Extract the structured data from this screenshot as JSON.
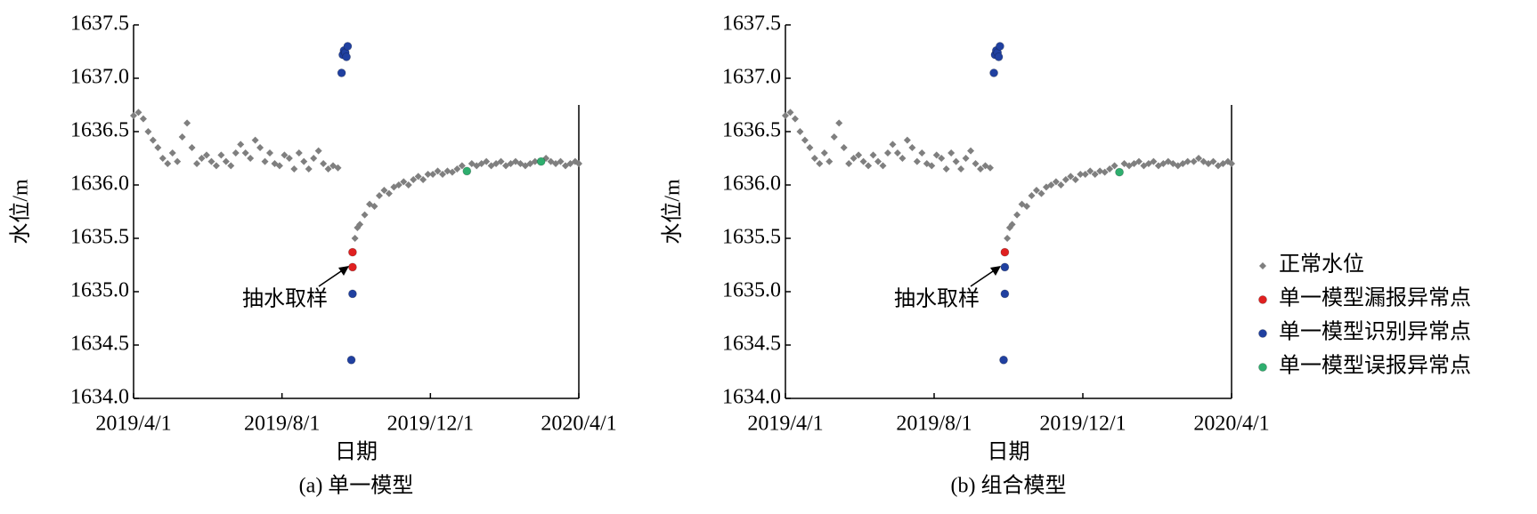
{
  "chart_data": [
    {
      "type": "scatter",
      "caption": "(a) 单一模型",
      "xlabel": "日期",
      "ylabel": "水位/m",
      "annotation": "抽水取样",
      "xlim": [
        "2019/4/1",
        "2020/4/1"
      ],
      "xticks": [
        "2019/4/1",
        "2019/8/1",
        "2019/12/1",
        "2020/4/1"
      ],
      "ylim": [
        1634,
        1637.5
      ],
      "yticks": [
        {
          "value": 1634,
          "label": "1634.0"
        },
        1634.5,
        {
          "value": 1635,
          "label": "1635.0"
        },
        1635.5,
        {
          "value": 1636,
          "label": "1636.0"
        },
        1636.5,
        {
          "value": 1637,
          "label": "1637.0"
        },
        1637.5
      ],
      "series": [
        {
          "color": "#7f7f7f",
          "marker": "diamond",
          "x": [
            "2019/4/1",
            "2019/4/5",
            "2019/4/9",
            "2019/4/13",
            "2019/4/17",
            "2019/4/21",
            "2019/4/25",
            "2019/4/29",
            "2019/5/3",
            "2019/5/7",
            "2019/5/11",
            "2019/5/15",
            "2019/5/19",
            "2019/5/23",
            "2019/5/27",
            "2019/5/31",
            "2019/6/4",
            "2019/6/8",
            "2019/6/12",
            "2019/6/16",
            "2019/6/20",
            "2019/6/24",
            "2019/6/28",
            "2019/7/2",
            "2019/7/6",
            "2019/7/10",
            "2019/7/14",
            "2019/7/18",
            "2019/7/22",
            "2019/7/26",
            "2019/7/30",
            "2019/8/3",
            "2019/8/7",
            "2019/8/11",
            "2019/8/15",
            "2019/8/19",
            "2019/8/23",
            "2019/8/27",
            "2019/8/31",
            "2019/9/4",
            "2019/9/8",
            "2019/9/12",
            "2019/9/16",
            "2019/9/30",
            "2019/10/2",
            "2019/10/4",
            "2019/10/8",
            "2019/10/12",
            "2019/10/16",
            "2019/10/20",
            "2019/10/24",
            "2019/10/28",
            "2019/11/1",
            "2019/11/5",
            "2019/11/9",
            "2019/11/13",
            "2019/11/17",
            "2019/11/21",
            "2019/11/25",
            "2019/11/29",
            "2019/12/3",
            "2019/12/7",
            "2019/12/11",
            "2019/12/15",
            "2019/12/19",
            "2019/12/23",
            "2019/12/27",
            "2020/1/4",
            "2020/1/8",
            "2020/1/12",
            "2020/1/16",
            "2020/1/20",
            "2020/1/24",
            "2020/1/28",
            "2020/2/1",
            "2020/2/5",
            "2020/2/9",
            "2020/2/13",
            "2020/2/17",
            "2020/2/21",
            "2020/2/25",
            "2020/3/5",
            "2020/3/9",
            "2020/3/13",
            "2020/3/17",
            "2020/3/21",
            "2020/3/25",
            "2020/3/29",
            "2020/4/1"
          ],
          "values": [
            1636.65,
            1636.68,
            1636.62,
            1636.5,
            1636.42,
            1636.35,
            1636.25,
            1636.2,
            1636.3,
            1636.22,
            1636.45,
            1636.58,
            1636.35,
            1636.2,
            1636.25,
            1636.28,
            1636.22,
            1636.18,
            1636.28,
            1636.22,
            1636.18,
            1636.3,
            1636.38,
            1636.3,
            1636.25,
            1636.42,
            1636.35,
            1636.22,
            1636.3,
            1636.2,
            1636.18,
            1636.28,
            1636.25,
            1636.15,
            1636.3,
            1636.22,
            1636.15,
            1636.25,
            1636.32,
            1636.2,
            1636.15,
            1636.18,
            1636.16,
            1635.5,
            1635.6,
            1635.63,
            1635.72,
            1635.82,
            1635.8,
            1635.9,
            1635.95,
            1635.92,
            1635.98,
            1636.0,
            1636.03,
            1636.0,
            1636.05,
            1636.08,
            1636.05,
            1636.1,
            1636.1,
            1636.13,
            1636.1,
            1636.13,
            1636.12,
            1636.15,
            1636.18,
            1636.2,
            1636.18,
            1636.2,
            1636.22,
            1636.18,
            1636.2,
            1636.22,
            1636.18,
            1636.2,
            1636.22,
            1636.2,
            1636.18,
            1636.2,
            1636.22,
            1636.25,
            1636.22,
            1636.2,
            1636.22,
            1636.18,
            1636.2,
            1636.22,
            1636.2
          ]
        },
        {
          "color": "#e02020",
          "marker": "circle",
          "x": [
            "2019/9/28",
            "2019/9/28"
          ],
          "values": [
            1635.37,
            1635.23
          ]
        },
        {
          "color": "#2040a0",
          "marker": "circle",
          "x": [
            "2019/9/19",
            "2019/9/20",
            "2019/9/21",
            "2019/9/22",
            "2019/9/23",
            "2019/9/24",
            "2019/9/28",
            "2019/9/27"
          ],
          "values": [
            1637.05,
            1637.22,
            1637.26,
            1637.24,
            1637.2,
            1637.3,
            1634.98,
            1634.36
          ]
        },
        {
          "color": "#2eae6e",
          "marker": "circle",
          "x": [
            "2019/12/31",
            "2020/3/1"
          ],
          "values": [
            1636.13,
            1636.22
          ]
        }
      ]
    },
    {
      "type": "scatter",
      "caption": "(b) 组合模型",
      "xlabel": "日期",
      "ylabel": "水位/m",
      "annotation": "抽水取样",
      "xlim": [
        "2019/4/1",
        "2020/4/1"
      ],
      "xticks": [
        "2019/4/1",
        "2019/8/1",
        "2019/12/1",
        "2020/4/1"
      ],
      "ylim": [
        1634,
        1637.5
      ],
      "yticks": [
        {
          "value": 1634,
          "label": "1634.0"
        },
        1634.5,
        {
          "value": 1635,
          "label": "1635.0"
        },
        1635.5,
        {
          "value": 1636,
          "label": "1636.0"
        },
        1636.5,
        {
          "value": 1637,
          "label": "1637.0"
        },
        1637.5
      ],
      "series": [
        {
          "color": "#7f7f7f",
          "marker": "diamond",
          "x": [
            "2019/4/1",
            "2019/4/5",
            "2019/4/9",
            "2019/4/13",
            "2019/4/17",
            "2019/4/21",
            "2019/4/25",
            "2019/4/29",
            "2019/5/3",
            "2019/5/7",
            "2019/5/11",
            "2019/5/15",
            "2019/5/19",
            "2019/5/23",
            "2019/5/27",
            "2019/5/31",
            "2019/6/4",
            "2019/6/8",
            "2019/6/12",
            "2019/6/16",
            "2019/6/20",
            "2019/6/24",
            "2019/6/28",
            "2019/7/2",
            "2019/7/6",
            "2019/7/10",
            "2019/7/14",
            "2019/7/18",
            "2019/7/22",
            "2019/7/26",
            "2019/7/30",
            "2019/8/3",
            "2019/8/7",
            "2019/8/11",
            "2019/8/15",
            "2019/8/19",
            "2019/8/23",
            "2019/8/27",
            "2019/8/31",
            "2019/9/4",
            "2019/9/8",
            "2019/9/12",
            "2019/9/16",
            "2019/9/30",
            "2019/10/2",
            "2019/10/4",
            "2019/10/8",
            "2019/10/12",
            "2019/10/16",
            "2019/10/20",
            "2019/10/24",
            "2019/10/28",
            "2019/11/1",
            "2019/11/5",
            "2019/11/9",
            "2019/11/13",
            "2019/11/17",
            "2019/11/21",
            "2019/11/25",
            "2019/11/29",
            "2019/12/3",
            "2019/12/7",
            "2019/12/11",
            "2019/12/15",
            "2019/12/19",
            "2019/12/23",
            "2019/12/27",
            "2020/1/4",
            "2020/1/8",
            "2020/1/12",
            "2020/1/16",
            "2020/1/20",
            "2020/1/24",
            "2020/1/28",
            "2020/2/1",
            "2020/2/5",
            "2020/2/9",
            "2020/2/13",
            "2020/2/17",
            "2020/2/21",
            "2020/2/25",
            "2020/3/1",
            "2020/3/5",
            "2020/3/9",
            "2020/3/13",
            "2020/3/17",
            "2020/3/21",
            "2020/3/25",
            "2020/3/29",
            "2020/4/1"
          ],
          "values": [
            1636.65,
            1636.68,
            1636.62,
            1636.5,
            1636.42,
            1636.35,
            1636.25,
            1636.2,
            1636.3,
            1636.22,
            1636.45,
            1636.58,
            1636.35,
            1636.2,
            1636.25,
            1636.28,
            1636.22,
            1636.18,
            1636.28,
            1636.22,
            1636.18,
            1636.3,
            1636.38,
            1636.3,
            1636.25,
            1636.42,
            1636.35,
            1636.22,
            1636.3,
            1636.2,
            1636.18,
            1636.28,
            1636.25,
            1636.15,
            1636.3,
            1636.22,
            1636.15,
            1636.25,
            1636.32,
            1636.2,
            1636.15,
            1636.18,
            1636.16,
            1635.5,
            1635.6,
            1635.63,
            1635.72,
            1635.82,
            1635.8,
            1635.9,
            1635.95,
            1635.92,
            1635.98,
            1636.0,
            1636.03,
            1636.0,
            1636.05,
            1636.08,
            1636.05,
            1636.1,
            1636.1,
            1636.13,
            1636.1,
            1636.13,
            1636.12,
            1636.15,
            1636.18,
            1636.2,
            1636.18,
            1636.2,
            1636.22,
            1636.18,
            1636.2,
            1636.22,
            1636.18,
            1636.2,
            1636.22,
            1636.2,
            1636.18,
            1636.2,
            1636.22,
            1636.22,
            1636.25,
            1636.22,
            1636.2,
            1636.22,
            1636.18,
            1636.2,
            1636.22,
            1636.2
          ]
        },
        {
          "color": "#e02020",
          "marker": "circle",
          "x": [
            "2019/9/28"
          ],
          "values": [
            1635.37
          ]
        },
        {
          "color": "#2040a0",
          "marker": "circle",
          "x": [
            "2019/9/19",
            "2019/9/20",
            "2019/9/21",
            "2019/9/22",
            "2019/9/23",
            "2019/9/24",
            "2019/9/28",
            "2019/9/28",
            "2019/9/27"
          ],
          "values": [
            1637.05,
            1637.22,
            1637.26,
            1637.24,
            1637.2,
            1637.3,
            1635.23,
            1634.98,
            1634.36
          ]
        },
        {
          "color": "#2eae6e",
          "marker": "circle",
          "x": [
            "2019/12/31"
          ],
          "values": [
            1636.12
          ]
        }
      ]
    }
  ],
  "legend": [
    {
      "name": "正常水位",
      "color": "#7f7f7f",
      "marker": "diamond"
    },
    {
      "name": "单一模型漏报异常点",
      "color": "#e02020",
      "marker": "circle"
    },
    {
      "name": "单一模型识别异常点",
      "color": "#2040a0",
      "marker": "circle"
    },
    {
      "name": "单一模型误报异常点",
      "color": "#2eae6e",
      "marker": "circle"
    }
  ]
}
